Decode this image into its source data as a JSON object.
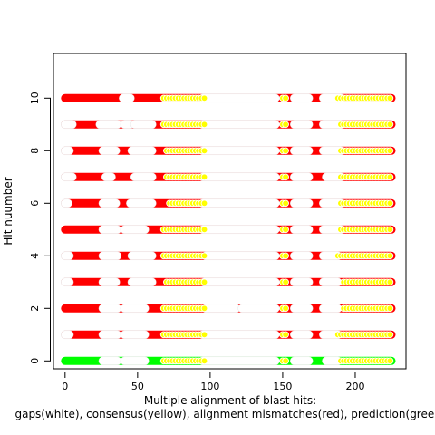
{
  "chart_data": {
    "type": "scatter",
    "title": "",
    "xlabel_line1": "Multiple alignment of blast hits:",
    "xlabel_line2": "gaps(white), consensus(yellow), alignment mismatches(red), prediction(green)",
    "ylabel": "Hit nuumber",
    "xlim": [
      -8,
      235
    ],
    "ylim": [
      -0.3,
      11.7
    ],
    "x_ticks": [
      0,
      50,
      100,
      150,
      200
    ],
    "y_ticks": [
      0,
      2,
      4,
      6,
      8,
      10
    ],
    "alignment_range": [
      0,
      225
    ],
    "colors": {
      "gap": "#ffffff",
      "consensus": "#ffff00",
      "mismatch": "#ff0000",
      "prediction": "#00ff00",
      "stroke": "#ffffff"
    },
    "consensus_segments": [
      [
        68,
        98
      ],
      [
        148,
        153
      ],
      [
        185,
        225
      ]
    ],
    "rows": [
      {
        "hit": 10,
        "base": "mismatch",
        "gaps": [
          [
            40,
            45
          ],
          [
            95,
            145
          ],
          [
            158,
            168
          ],
          [
            178,
            190
          ]
        ],
        "consensus": [
          [
            68,
            96
          ],
          [
            150,
            153
          ],
          [
            188,
            224
          ]
        ]
      },
      {
        "hit": 9,
        "base": "mismatch",
        "gaps": [
          [
            0,
            5
          ],
          [
            24,
            36
          ],
          [
            41,
            45
          ],
          [
            48,
            60
          ],
          [
            95,
            145
          ],
          [
            158,
            168
          ],
          [
            178,
            190
          ]
        ],
        "consensus": [
          [
            68,
            96
          ],
          [
            150,
            153
          ],
          [
            190,
            224
          ]
        ]
      },
      {
        "hit": 8,
        "base": "mismatch",
        "gaps": [
          [
            0,
            3
          ],
          [
            26,
            35
          ],
          [
            46,
            60
          ],
          [
            95,
            145
          ],
          [
            158,
            168
          ],
          [
            178,
            190
          ]
        ],
        "consensus": [
          [
            70,
            96
          ],
          [
            150,
            153
          ],
          [
            190,
            224
          ]
        ]
      },
      {
        "hit": 7,
        "base": "mismatch",
        "gaps": [
          [
            0,
            5
          ],
          [
            28,
            32
          ],
          [
            48,
            60
          ],
          [
            95,
            145
          ],
          [
            158,
            168
          ],
          [
            180,
            190
          ]
        ],
        "consensus": [
          [
            70,
            96
          ],
          [
            150,
            153
          ],
          [
            190,
            224
          ]
        ]
      },
      {
        "hit": 6,
        "base": "mismatch",
        "gaps": [
          [
            0,
            2
          ],
          [
            26,
            35
          ],
          [
            45,
            60
          ],
          [
            95,
            145
          ],
          [
            158,
            168
          ],
          [
            178,
            190
          ]
        ],
        "consensus": [
          [
            72,
            96
          ],
          [
            150,
            153
          ],
          [
            190,
            224
          ]
        ]
      },
      {
        "hit": 5,
        "base": "mismatch",
        "gaps": [
          [
            26,
            36
          ],
          [
            41,
            55
          ],
          [
            95,
            145
          ],
          [
            158,
            168
          ],
          [
            178,
            190
          ]
        ],
        "consensus": [
          [
            68,
            96
          ],
          [
            150,
            153
          ],
          [
            190,
            224
          ]
        ]
      },
      {
        "hit": 4,
        "base": "mismatch",
        "gaps": [
          [
            0,
            3
          ],
          [
            26,
            36
          ],
          [
            46,
            60
          ],
          [
            97,
            145
          ],
          [
            158,
            168
          ],
          [
            178,
            188
          ]
        ],
        "consensus": [
          [
            68,
            96
          ],
          [
            150,
            153
          ],
          [
            188,
            224
          ]
        ]
      },
      {
        "hit": 3,
        "base": "mismatch",
        "gaps": [
          [
            0,
            3
          ],
          [
            26,
            35
          ],
          [
            46,
            60
          ],
          [
            96,
            145
          ],
          [
            158,
            168
          ],
          [
            178,
            188
          ]
        ],
        "consensus": [
          [
            70,
            96
          ],
          [
            150,
            153
          ],
          [
            192,
            224
          ]
        ]
      },
      {
        "hit": 2,
        "base": "mismatch",
        "gaps": [
          [
            26,
            36
          ],
          [
            41,
            55
          ],
          [
            97,
            118
          ],
          [
            122,
            145
          ],
          [
            158,
            168
          ],
          [
            178,
            188
          ]
        ],
        "consensus": [
          [
            68,
            96
          ],
          [
            150,
            153
          ],
          [
            192,
            224
          ]
        ]
      },
      {
        "hit": 1,
        "base": "mismatch",
        "gaps": [
          [
            0,
            3
          ],
          [
            26,
            36
          ],
          [
            41,
            55
          ],
          [
            95,
            145
          ],
          [
            158,
            168
          ],
          [
            178,
            188
          ]
        ],
        "consensus": [
          [
            68,
            96
          ],
          [
            150,
            153
          ],
          [
            188,
            224
          ]
        ]
      },
      {
        "hit": 0,
        "base": "prediction",
        "gaps": [
          [
            26,
            36
          ],
          [
            41,
            55
          ],
          [
            95,
            145
          ],
          [
            158,
            168
          ],
          [
            180,
            188
          ]
        ],
        "consensus": [
          [
            68,
            96
          ],
          [
            150,
            153
          ],
          [
            190,
            224
          ]
        ]
      }
    ]
  }
}
